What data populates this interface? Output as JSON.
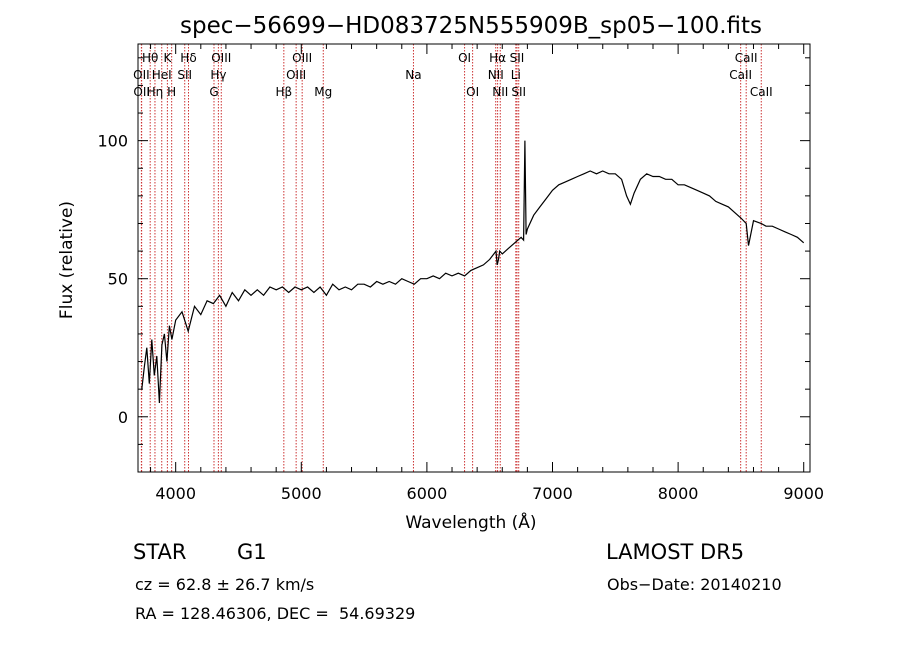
{
  "chart_data": {
    "type": "line",
    "title": "spec−56699−HD083725N555909B_sp05−100.fits",
    "xlabel": "Wavelength (Å)",
    "ylabel": "Flux (relative)",
    "xlim": [
      3700,
      9050
    ],
    "ylim": [
      -20,
      135
    ],
    "x_ticks": [
      4000,
      5000,
      6000,
      7000,
      8000,
      9000
    ],
    "y_ticks": [
      0,
      50,
      100
    ],
    "grid": false,
    "line_color": "#000000",
    "marker_color": "#cc3333",
    "series": [
      {
        "x": [
          3730,
          3750,
          3770,
          3790,
          3810,
          3830,
          3850,
          3870,
          3890,
          3910,
          3930,
          3950,
          3970,
          4000,
          4050,
          4100,
          4150,
          4200,
          4250,
          4300,
          4350,
          4400,
          4450,
          4500,
          4550,
          4600,
          4650,
          4700,
          4750,
          4800,
          4850,
          4900,
          4950,
          5000,
          5050,
          5100,
          5150,
          5200,
          5250,
          5300,
          5350,
          5400,
          5450,
          5500,
          5550,
          5600,
          5650,
          5700,
          5750,
          5800,
          5850,
          5900,
          5950,
          6000,
          6050,
          6100,
          6150,
          6200,
          6250,
          6300,
          6350,
          6400,
          6450,
          6500,
          6550,
          6560,
          6570,
          6580,
          6600,
          6650,
          6700,
          6750,
          6770,
          6780,
          6790,
          6800,
          6850,
          6900,
          6950,
          7000,
          7050,
          7100,
          7150,
          7200,
          7250,
          7300,
          7350,
          7400,
          7450,
          7500,
          7550,
          7590,
          7620,
          7650,
          7700,
          7750,
          7800,
          7850,
          7900,
          7950,
          8000,
          8050,
          8100,
          8150,
          8200,
          8250,
          8300,
          8350,
          8400,
          8450,
          8500,
          8542,
          8560,
          8600,
          8662,
          8700,
          8750,
          8800,
          8850,
          8900,
          8950,
          9000
        ],
        "y": [
          10,
          18,
          25,
          12,
          28,
          15,
          22,
          5,
          26,
          30,
          20,
          33,
          28,
          35,
          38,
          31,
          40,
          37,
          42,
          41,
          44,
          40,
          45,
          42,
          46,
          44,
          46,
          44,
          47,
          46,
          47,
          45,
          47,
          46,
          47,
          45,
          47,
          44,
          48,
          46,
          47,
          46,
          48,
          48,
          47,
          49,
          48,
          49,
          48,
          50,
          49,
          48,
          50,
          50,
          51,
          50,
          52,
          51,
          52,
          51,
          53,
          54,
          55,
          57,
          60,
          55,
          57,
          60,
          59,
          61,
          63,
          65,
          64,
          100,
          66,
          68,
          73,
          76,
          79,
          82,
          84,
          85,
          86,
          87,
          88,
          89,
          88,
          89,
          88,
          88,
          86,
          80,
          77,
          81,
          86,
          88,
          87,
          87,
          86,
          86,
          84,
          84,
          83,
          82,
          81,
          80,
          78,
          77,
          76,
          74,
          72,
          70,
          62,
          71,
          70,
          69,
          69,
          68,
          67,
          66,
          65,
          63
        ]
      }
    ],
    "lines": [
      {
        "label": "Hθ",
        "x": 3797,
        "row": 1
      },
      {
        "label": "OII",
        "x": 3727,
        "row": 2
      },
      {
        "label": "OII",
        "x": 3729,
        "row": 3
      },
      {
        "label": "K",
        "x": 3934,
        "row": 1
      },
      {
        "label": "HeI",
        "x": 3889,
        "row": 2
      },
      {
        "label": "Hη",
        "x": 3835,
        "row": 3
      },
      {
        "label": "H",
        "x": 3968,
        "row": 3
      },
      {
        "label": "Hδ",
        "x": 4102,
        "row": 1
      },
      {
        "label": "SII",
        "x": 4072,
        "row": 2
      },
      {
        "label": "OIII",
        "x": 4363,
        "row": 1
      },
      {
        "label": "Hγ",
        "x": 4340,
        "row": 2
      },
      {
        "label": "G",
        "x": 4305,
        "row": 3
      },
      {
        "label": "OIII",
        "x": 5007,
        "row": 1
      },
      {
        "label": "OIII",
        "x": 4959,
        "row": 2
      },
      {
        "label": "Hβ",
        "x": 4861,
        "row": 3
      },
      {
        "label": "Mg",
        "x": 5175,
        "row": 3
      },
      {
        "label": "Na",
        "x": 5893,
        "row": 2
      },
      {
        "label": "OI",
        "x": 6300,
        "row": 1
      },
      {
        "label": "OI",
        "x": 6364,
        "row": 3
      },
      {
        "label": "Hα",
        "x": 6563,
        "row": 1
      },
      {
        "label": "NII",
        "x": 6548,
        "row": 2
      },
      {
        "label": "NII",
        "x": 6584,
        "row": 3
      },
      {
        "label": "SII",
        "x": 6717,
        "row": 1
      },
      {
        "label": "Li",
        "x": 6708,
        "row": 2
      },
      {
        "label": "SII",
        "x": 6731,
        "row": 3
      },
      {
        "label": "CaII",
        "x": 8542,
        "row": 1
      },
      {
        "label": "CaII",
        "x": 8498,
        "row": 2
      },
      {
        "label": "CaII",
        "x": 8662,
        "row": 3
      }
    ]
  },
  "info": {
    "object_class": "STAR",
    "subclass": "G1",
    "survey": "LAMOST DR5",
    "cz": "cz = 62.8 ± 26.7 km/s",
    "obs_date": "Obs−Date: 20140210",
    "radec": "RA = 128.46306, DEC =  54.69329"
  }
}
